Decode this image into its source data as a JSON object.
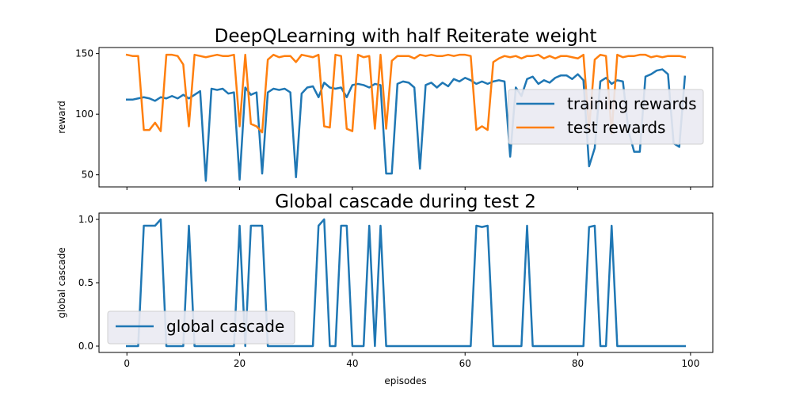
{
  "chart_data": [
    {
      "type": "line",
      "title": "DeepQLearning with half Reiterate weight",
      "xlabel": "",
      "ylabel": "reward",
      "xlim": [
        -4.95,
        103.95
      ],
      "ylim": [
        40,
        155
      ],
      "xticks": [
        0,
        20,
        40,
        60,
        80,
        100
      ],
      "yticks": [
        50,
        100,
        150
      ],
      "xticklabels_visible": false,
      "legend_position": "center-right",
      "series": [
        {
          "name": "training rewards",
          "color": "#1f77b4",
          "values": [
            112,
            112,
            113,
            114,
            113,
            111,
            114,
            113,
            115,
            113,
            116,
            113,
            116,
            119,
            45,
            121,
            120,
            121,
            117,
            118,
            46,
            122,
            116,
            118,
            51,
            118,
            121,
            120,
            121,
            118,
            48,
            117,
            122,
            123,
            114,
            126,
            122,
            121,
            122,
            114,
            124,
            125,
            124,
            122,
            125,
            124,
            51,
            51,
            125,
            127,
            126,
            122,
            55,
            124,
            126,
            122,
            126,
            123,
            129,
            127,
            130,
            128,
            125,
            127,
            125,
            127,
            128,
            127,
            65,
            122,
            115,
            129,
            131,
            125,
            128,
            126,
            130,
            132,
            132,
            129,
            133,
            128,
            57,
            72,
            127,
            130,
            125,
            128,
            127,
            86,
            69,
            69,
            131,
            133,
            136,
            137,
            133,
            76,
            73,
            131
          ]
        },
        {
          "name": "test rewards",
          "color": "#ff7f0e",
          "values": [
            149,
            148,
            148,
            87,
            87,
            93,
            86,
            149,
            149,
            148,
            141,
            90,
            149,
            148,
            147,
            148,
            149,
            148,
            148,
            149,
            90,
            149,
            92,
            90,
            85,
            145,
            149,
            147,
            148,
            148,
            143,
            149,
            148,
            147,
            149,
            90,
            89,
            149,
            148,
            88,
            86,
            149,
            147,
            148,
            88,
            149,
            88,
            144,
            148,
            148,
            148,
            146,
            149,
            148,
            149,
            148,
            148,
            149,
            148,
            149,
            149,
            148,
            87,
            90,
            87,
            143,
            146,
            148,
            147,
            148,
            146,
            148,
            148,
            149,
            146,
            148,
            146,
            148,
            148,
            147,
            146,
            149,
            88,
            145,
            149,
            148,
            84,
            149,
            147,
            148,
            148,
            149,
            149,
            147,
            148,
            147,
            148,
            148,
            148,
            147
          ]
        }
      ]
    },
    {
      "type": "line",
      "title": "Global cascade during test 2",
      "xlabel": "episodes",
      "ylabel": "global cascade",
      "xlim": [
        -4.95,
        103.95
      ],
      "ylim": [
        -0.05,
        1.05
      ],
      "xticks": [
        0,
        20,
        40,
        60,
        80,
        100
      ],
      "yticks": [
        0.0,
        0.5,
        1.0
      ],
      "yticklabels": [
        "0.0",
        "0.5",
        "1.0"
      ],
      "legend_position": "lower-left",
      "series": [
        {
          "name": "global cascade",
          "color": "#1f77b4",
          "values": [
            0,
            0,
            0,
            0.95,
            0.95,
            0.95,
            1.0,
            0,
            0,
            0,
            0,
            0.95,
            0,
            0,
            0,
            0,
            0,
            0,
            0,
            0,
            0.95,
            0,
            0.95,
            0.95,
            0.95,
            0,
            0,
            0,
            0,
            0,
            0,
            0,
            0,
            0,
            0.95,
            1.0,
            0,
            0,
            0.95,
            0.95,
            0,
            0,
            0,
            0.95,
            0,
            0.95,
            0,
            0,
            0,
            0,
            0,
            0,
            0,
            0,
            0,
            0,
            0,
            0,
            0,
            0,
            0,
            0,
            0.95,
            0.94,
            0.95,
            0,
            0,
            0,
            0,
            0,
            0,
            0.95,
            0,
            0,
            0,
            0,
            0,
            0,
            0,
            0,
            0,
            0,
            0.94,
            0.95,
            0,
            0,
            0.95,
            0,
            0,
            0,
            0,
            0,
            0,
            0,
            0,
            0,
            0,
            0,
            0,
            0
          ]
        }
      ]
    }
  ]
}
